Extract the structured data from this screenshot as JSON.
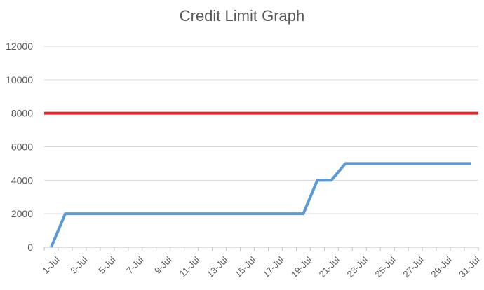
{
  "chart_data": {
    "type": "line",
    "title": "Credit Limit Graph",
    "xlabel": "",
    "ylabel": "",
    "ylim": [
      0,
      12000
    ],
    "yticks": [
      "0",
      "2000",
      "4000",
      "6000",
      "8000",
      "10000",
      "12000"
    ],
    "xticks": [
      "1-Jul",
      "3-Jul",
      "5-Jul",
      "7-Jul",
      "9-Jul",
      "11-Jul",
      "13-Jul",
      "15-Jul",
      "17-Jul",
      "19-Jul",
      "21-Jul",
      "23-Jul",
      "25-Jul",
      "27-Jul",
      "29-Jul",
      "31-Jul"
    ],
    "grid": true,
    "legend": "none",
    "x": [
      1,
      2,
      3,
      4,
      5,
      6,
      7,
      8,
      9,
      10,
      11,
      12,
      13,
      14,
      15,
      16,
      17,
      18,
      19,
      20,
      21,
      22,
      23,
      24,
      25,
      26,
      27,
      28,
      29,
      30,
      31
    ],
    "series": [
      {
        "color": "#5B9BD5",
        "values": [
          0,
          2000,
          2000,
          2000,
          2000,
          2000,
          2000,
          2000,
          2000,
          2000,
          2000,
          2000,
          2000,
          2000,
          2000,
          2000,
          2000,
          2000,
          2000,
          4000,
          4000,
          5000,
          5000,
          5000,
          5000,
          5000,
          5000,
          5000,
          5000,
          5000,
          5000
        ]
      },
      {
        "color": "#E3242B",
        "values": [
          8000,
          8000,
          8000,
          8000,
          8000,
          8000,
          8000,
          8000,
          8000,
          8000,
          8000,
          8000,
          8000,
          8000,
          8000,
          8000,
          8000,
          8000,
          8000,
          8000,
          8000,
          8000,
          8000,
          8000,
          8000,
          8000,
          8000,
          8000,
          8000,
          8000,
          8000
        ]
      }
    ]
  }
}
